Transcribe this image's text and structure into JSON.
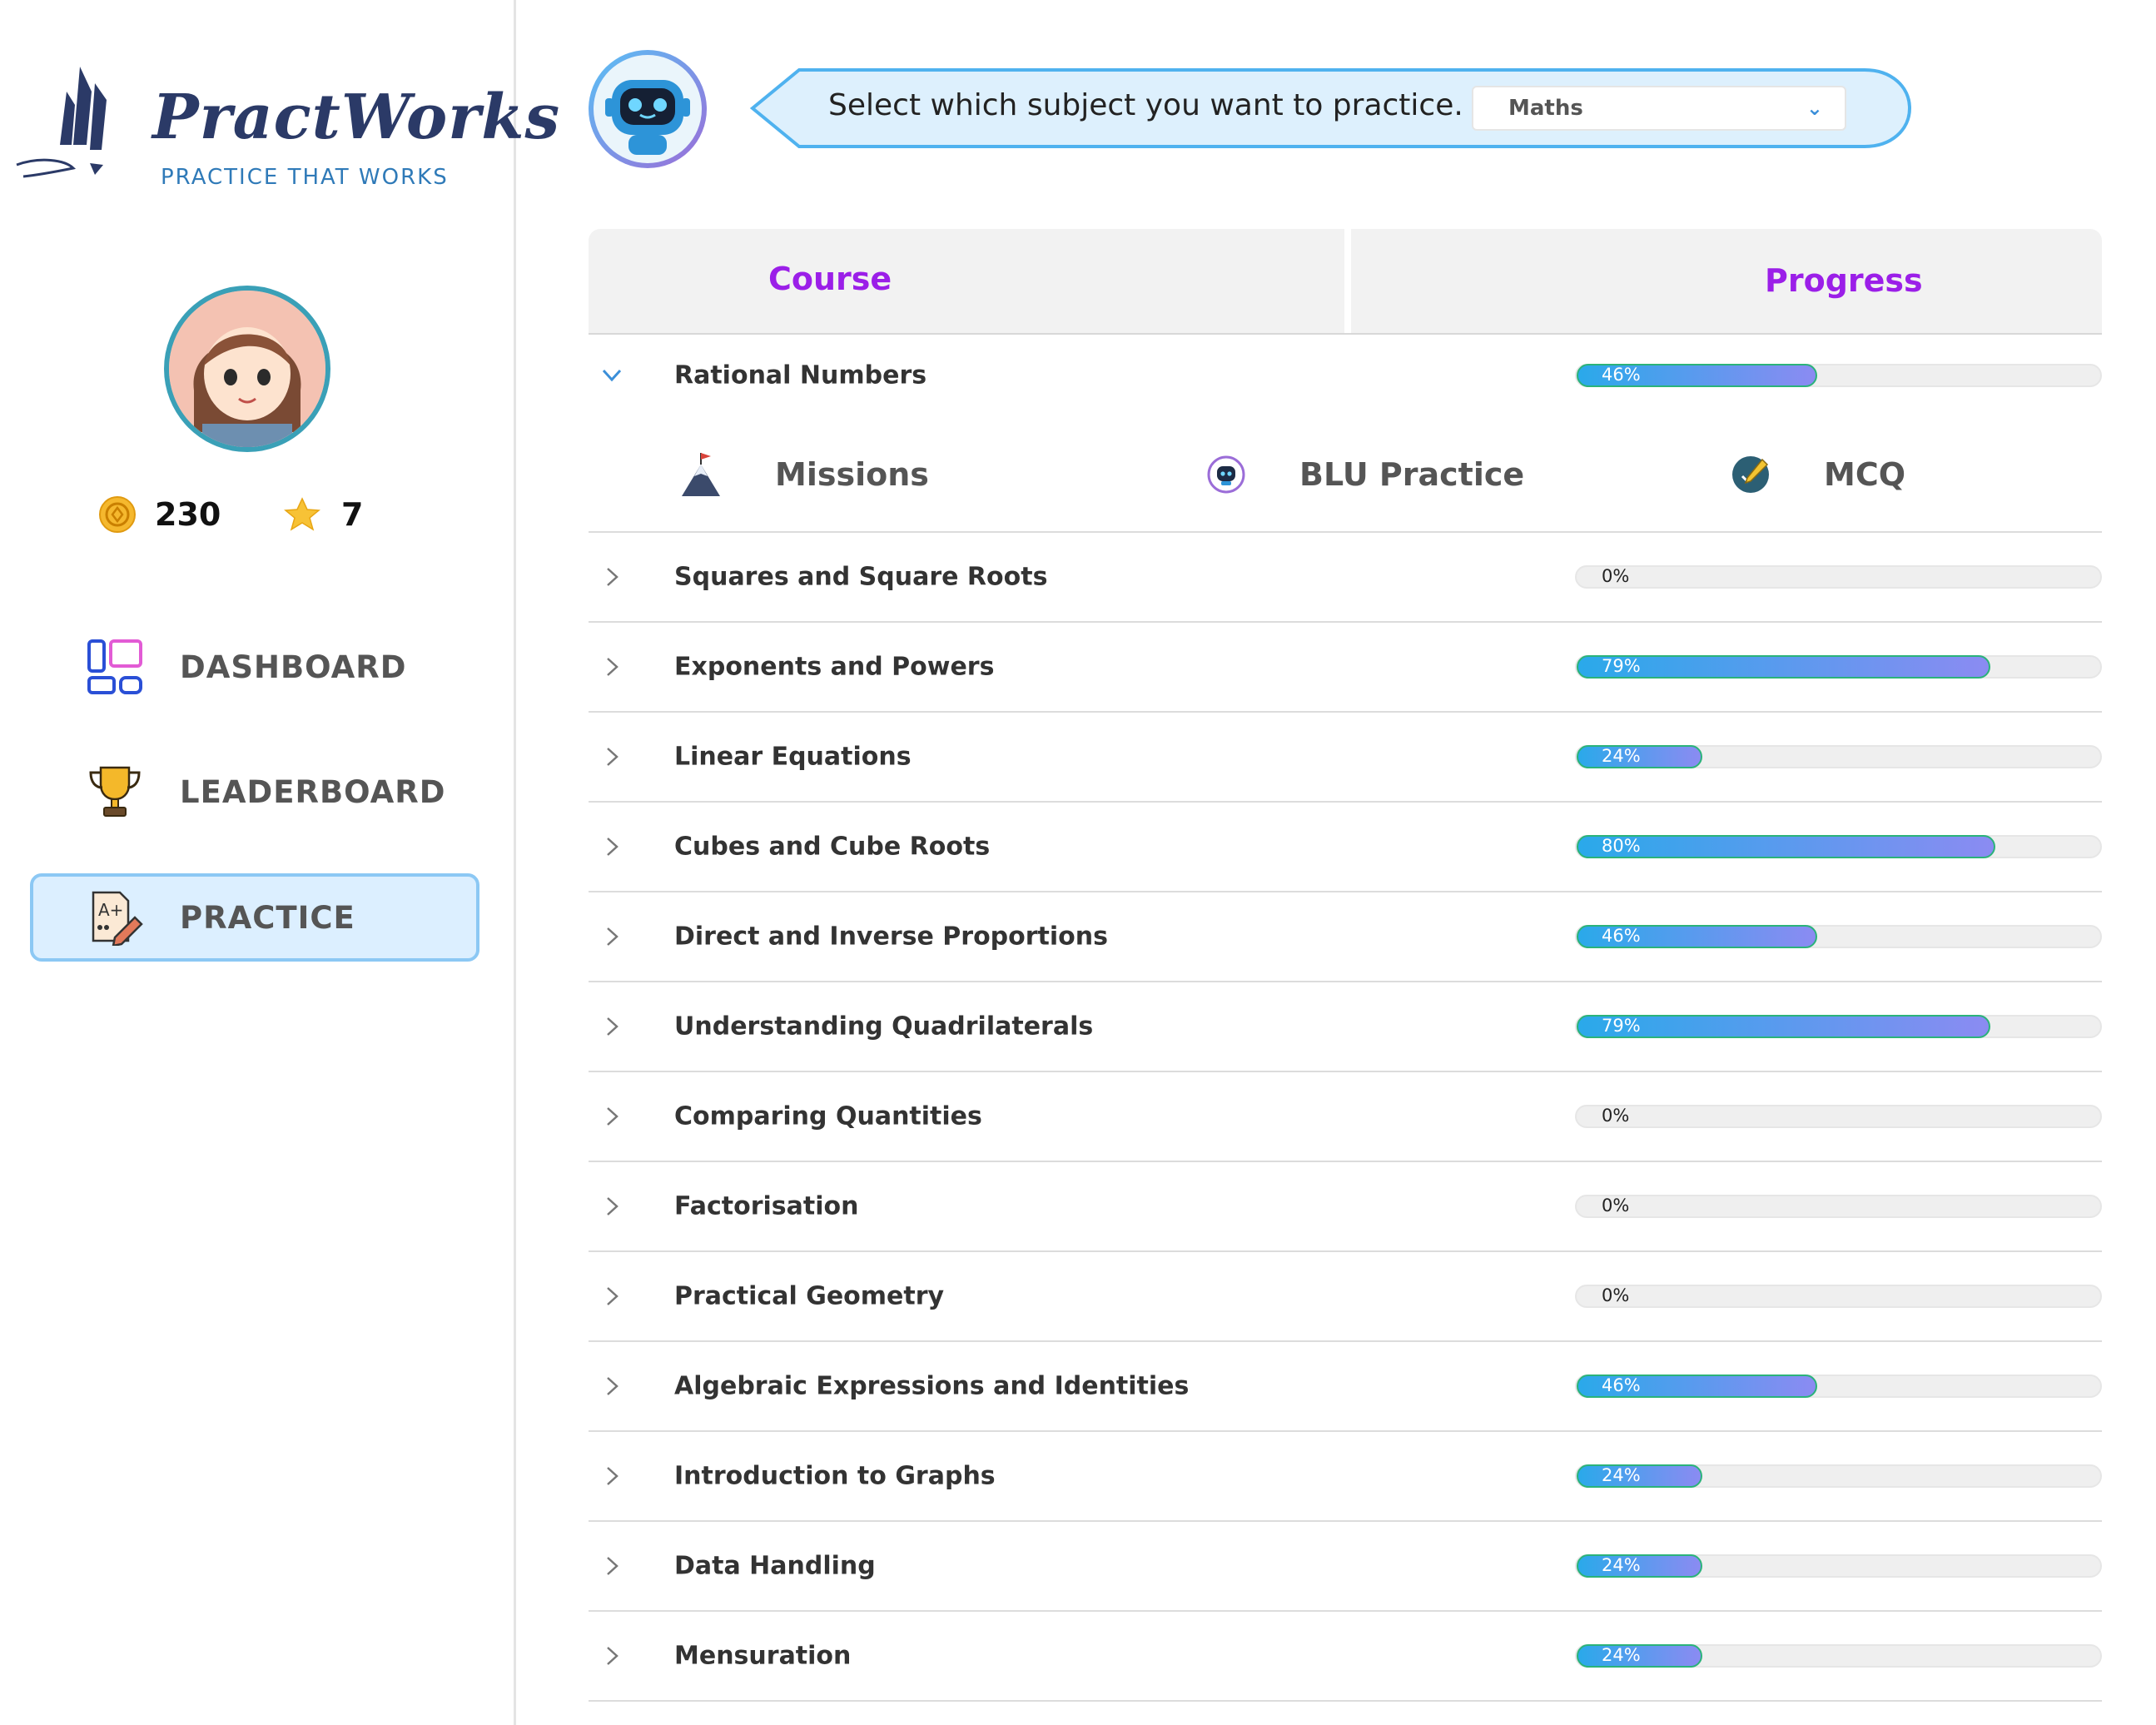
{
  "brand": {
    "name": "PractWorks",
    "tagline": "PRACTICE THAT WORKS"
  },
  "user": {
    "coins": "230",
    "stars": "7"
  },
  "nav": [
    {
      "label": "DASHBOARD",
      "icon": "dashboard-icon",
      "active": false
    },
    {
      "label": "LEADERBOARD",
      "icon": "trophy-icon",
      "active": false
    },
    {
      "label": "PRACTICE",
      "icon": "practice-icon",
      "active": true
    }
  ],
  "prompt": {
    "text": "Select which subject you want to practice.",
    "selected_subject": "Maths"
  },
  "table": {
    "headers": {
      "course": "Course",
      "progress": "Progress"
    },
    "expanded": {
      "title": "Rational Numbers",
      "progress": 46,
      "progress_label": "46%",
      "options": [
        {
          "label": "Missions",
          "icon": "mountain-flag-icon"
        },
        {
          "label": "BLU Practice",
          "icon": "robot-icon"
        },
        {
          "label": "MCQ",
          "icon": "pencil-check-icon"
        }
      ]
    },
    "rows": [
      {
        "title": "Squares and Square Roots",
        "progress": 0,
        "progress_label": "0%"
      },
      {
        "title": "Exponents and Powers",
        "progress": 79,
        "progress_label": "79%"
      },
      {
        "title": "Linear Equations",
        "progress": 24,
        "progress_label": "24%"
      },
      {
        "title": "Cubes and Cube Roots",
        "progress": 80,
        "progress_label": "80%"
      },
      {
        "title": "Direct and Inverse Proportions",
        "progress": 46,
        "progress_label": "46%"
      },
      {
        "title": "Understanding Quadrilaterals",
        "progress": 79,
        "progress_label": "79%"
      },
      {
        "title": "Comparing Quantities",
        "progress": 0,
        "progress_label": "0%"
      },
      {
        "title": "Factorisation",
        "progress": 0,
        "progress_label": "0%"
      },
      {
        "title": "Practical Geometry",
        "progress": 0,
        "progress_label": "0%"
      },
      {
        "title": "Algebraic Expressions and Identities",
        "progress": 46,
        "progress_label": "46%"
      },
      {
        "title": "Introduction to Graphs",
        "progress": 24,
        "progress_label": "24%"
      },
      {
        "title": "Data Handling",
        "progress": 24,
        "progress_label": "24%"
      },
      {
        "title": "Mensuration",
        "progress": 24,
        "progress_label": "24%"
      }
    ]
  },
  "colors": {
    "accent": "#9b1fe8",
    "bar_start": "#2aa9ea",
    "bar_end": "#8b8bf2",
    "active_nav_bg": "#dcefff"
  }
}
